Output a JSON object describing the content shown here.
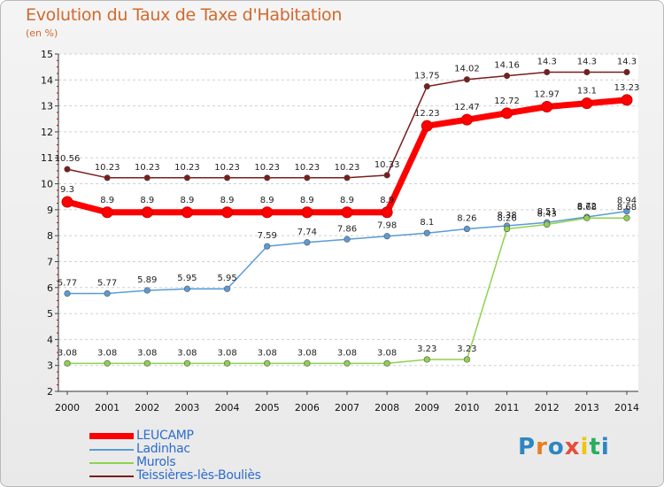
{
  "title": "Evolution du Taux de Taxe d'Habitation",
  "unit_label": "(en %)",
  "brand": {
    "letters": [
      "P",
      "r",
      "o",
      "x",
      "i",
      "t",
      "i"
    ],
    "colors": [
      "#2e86c1",
      "#e67e22",
      "#2e86c1",
      "#e74c3c",
      "#f1c40f",
      "#27ae60",
      "#2e86c1"
    ]
  },
  "chart_data": {
    "type": "line",
    "title": "Evolution du Taux de Taxe d'Habitation",
    "ylabel": "(en %)",
    "xlabel": "",
    "x": [
      "2000",
      "2001",
      "2002",
      "2003",
      "2004",
      "2005",
      "2006",
      "2007",
      "2008",
      "2009",
      "2010",
      "2011",
      "2012",
      "2013",
      "2014"
    ],
    "ylim": [
      2,
      15
    ],
    "yticks": [
      "2",
      "3",
      "4",
      "5",
      "6",
      "7",
      "8",
      "9",
      "10",
      "11",
      "12",
      "13",
      "14",
      "15"
    ],
    "grid": "horizontal dashed",
    "legend_position": "bottom-left",
    "series": [
      {
        "name": "LEUCAMP",
        "color": "#ff0000",
        "values": [
          9.3,
          8.9,
          8.9,
          8.9,
          8.9,
          8.9,
          8.9,
          8.9,
          8.9,
          12.23,
          12.47,
          12.72,
          12.97,
          13.1,
          13.23
        ],
        "labels": [
          "9.3",
          "8.9",
          "8.9",
          "8.9",
          "8.9",
          "8.9",
          "8.9",
          "8.9",
          "8.9",
          "12.23",
          "12.47",
          "12.72",
          "12.97",
          "13.1",
          "13.23"
        ]
      },
      {
        "name": "Ladinhac",
        "color": "#5b9bd5",
        "values": [
          5.77,
          5.77,
          5.89,
          5.95,
          5.95,
          7.59,
          7.74,
          7.86,
          7.98,
          8.1,
          8.26,
          8.38,
          8.51,
          8.72,
          8.94
        ],
        "labels": [
          "5.77",
          "5.77",
          "5.89",
          "5.95",
          "5.95",
          "7.59",
          "7.74",
          "7.86",
          "7.98",
          "8.1",
          "8.26",
          "8.38",
          "8.51",
          "8.72",
          "8.94"
        ]
      },
      {
        "name": "Murols",
        "color": "#8fd14f",
        "values": [
          3.08,
          3.08,
          3.08,
          3.08,
          3.08,
          3.08,
          3.08,
          3.08,
          3.08,
          3.23,
          3.23,
          8.26,
          8.43,
          8.68,
          8.68
        ],
        "labels": [
          "3.08",
          "3.08",
          "3.08",
          "3.08",
          "3.08",
          "3.08",
          "3.08",
          "3.08",
          "3.08",
          "3.23",
          "3.23",
          "8.26",
          "8.43",
          "8.68",
          "8.68"
        ]
      },
      {
        "name": "Teissières-lès-Bouliès",
        "color": "#7b1c1c",
        "values": [
          10.56,
          10.23,
          10.23,
          10.23,
          10.23,
          10.23,
          10.23,
          10.23,
          10.33,
          13.75,
          14.02,
          14.16,
          14.3,
          14.3,
          14.3
        ],
        "labels": [
          "10.56",
          "10.23",
          "10.23",
          "10.23",
          "10.23",
          "10.23",
          "10.23",
          "10.23",
          "10.33",
          "13.75",
          "14.02",
          "14.16",
          "14.3",
          "14.3",
          "14.3"
        ]
      }
    ]
  }
}
